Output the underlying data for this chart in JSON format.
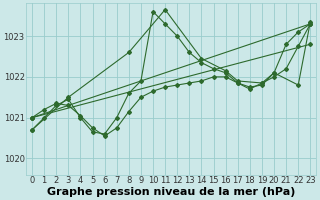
{
  "title": "Graphe pression niveau de la mer (hPa)",
  "background_color": "#cce8e8",
  "grid_color": "#99cccc",
  "line_color": "#2d6a2d",
  "xlim": [
    -0.5,
    23.5
  ],
  "ylim": [
    1019.6,
    1023.8
  ],
  "yticks": [
    1020,
    1021,
    1022,
    1023
  ],
  "xticks": [
    0,
    1,
    2,
    3,
    4,
    5,
    6,
    7,
    8,
    9,
    10,
    11,
    12,
    13,
    14,
    15,
    16,
    17,
    18,
    19,
    20,
    21,
    22,
    23
  ],
  "series": [
    {
      "x": [
        0,
        1,
        2,
        3,
        4,
        5,
        6,
        7,
        8,
        9,
        10,
        11,
        12,
        13,
        14,
        15,
        16,
        17,
        18,
        19,
        20,
        21,
        22,
        23
      ],
      "y": [
        1020.7,
        1021.0,
        1021.3,
        1021.45,
        1021.0,
        1020.65,
        1020.6,
        1021.0,
        1021.6,
        1021.9,
        1023.6,
        1023.3,
        1023.0,
        1022.6,
        1022.35,
        1022.2,
        1022.1,
        1021.85,
        1021.75,
        1021.8,
        1022.1,
        1022.8,
        1023.1,
        1023.3
      ]
    },
    {
      "x": [
        0,
        23
      ],
      "y": [
        1021.0,
        1023.3
      ]
    },
    {
      "x": [
        0,
        23
      ],
      "y": [
        1021.0,
        1022.8
      ]
    },
    {
      "x": [
        0,
        1,
        2,
        3,
        4,
        5,
        6,
        7,
        8,
        9,
        10,
        11,
        12,
        13,
        14,
        15,
        16,
        17,
        18,
        19,
        20,
        21,
        22,
        23
      ],
      "y": [
        1021.0,
        1021.2,
        1021.35,
        1021.3,
        1021.05,
        1020.75,
        1020.55,
        1020.75,
        1021.15,
        1021.5,
        1021.65,
        1021.75,
        1021.8,
        1021.85,
        1021.9,
        1022.0,
        1022.0,
        1021.85,
        1021.7,
        1021.85,
        1022.0,
        1022.2,
        1022.75,
        1023.3
      ]
    },
    {
      "x": [
        0,
        3,
        8,
        11,
        14,
        16,
        17,
        19,
        20,
        22,
        23
      ],
      "y": [
        1020.7,
        1021.5,
        1022.6,
        1023.65,
        1022.45,
        1022.15,
        1021.9,
        1021.85,
        1022.1,
        1021.8,
        1023.35
      ]
    }
  ],
  "title_fontsize": 8,
  "tick_fontsize": 6
}
